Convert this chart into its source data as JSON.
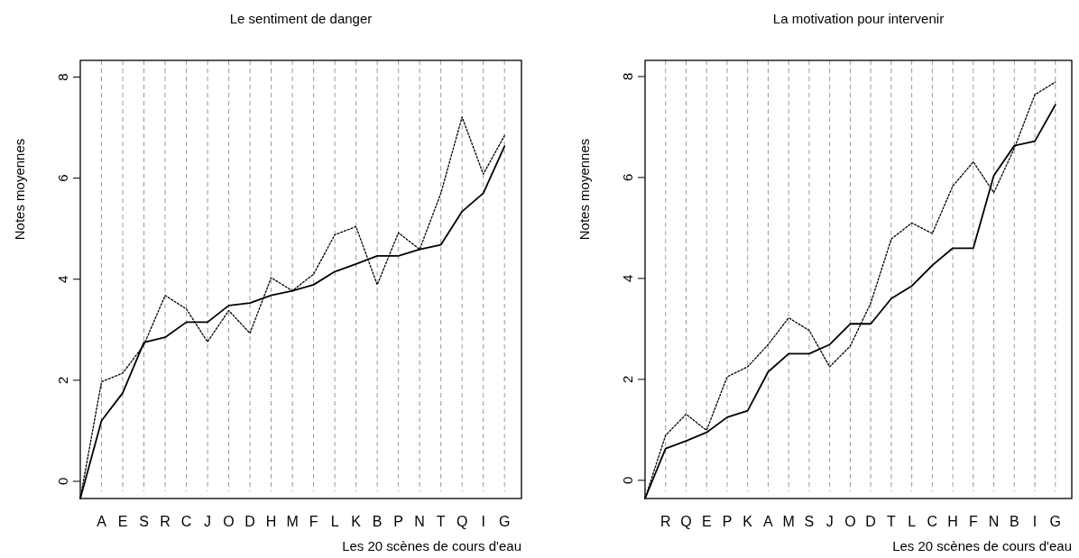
{
  "chart_data": [
    {
      "type": "line",
      "title": "Le sentiment de danger",
      "xlabel": "Les 20 scènes de cours d'eau",
      "ylabel": "Notes moyennes",
      "categories": [
        null,
        "A",
        "E",
        "S",
        "R",
        "C",
        "J",
        "O",
        "D",
        "H",
        "M",
        "F",
        "L",
        "K",
        "B",
        "P",
        "N",
        "T",
        "Q",
        "I",
        "G"
      ],
      "series": [
        {
          "color": "#000000",
          "line_style": "solid",
          "values": [
            -0.34,
            1.2,
            1.75,
            2.75,
            2.85,
            3.15,
            3.15,
            3.48,
            3.53,
            3.68,
            3.77,
            3.89,
            4.15,
            4.3,
            4.46,
            4.46,
            4.59,
            4.68,
            5.34,
            5.7,
            6.63
          ]
        },
        {
          "color": "#000000",
          "line_style": "dotted",
          "values": [
            -0.34,
            1.97,
            2.14,
            2.7,
            3.68,
            3.41,
            2.76,
            3.38,
            2.93,
            4.03,
            3.77,
            4.1,
            4.88,
            5.04,
            3.89,
            4.92,
            4.59,
            5.7,
            7.21,
            6.08,
            6.84
          ]
        }
      ],
      "ylim": [
        -0.34,
        8.33
      ],
      "yticks": [
        0,
        2,
        4,
        6,
        8
      ],
      "grid": "x"
    },
    {
      "type": "line",
      "title": "La motivation pour intervenir",
      "xlabel": "Les 20 scènes de cours d'eau",
      "ylabel": "Notes moyennes",
      "categories": [
        null,
        "R",
        "Q",
        "E",
        "P",
        "K",
        "A",
        "M",
        "S",
        "J",
        "O",
        "D",
        "T",
        "L",
        "C",
        "H",
        "F",
        "N",
        "B",
        "I",
        "G"
      ],
      "series": [
        {
          "color": "#000000",
          "line_style": "solid",
          "values": [
            -0.36,
            0.63,
            0.78,
            0.95,
            1.25,
            1.38,
            2.15,
            2.51,
            2.51,
            2.69,
            3.1,
            3.1,
            3.6,
            3.85,
            4.26,
            4.6,
            4.6,
            6.04,
            6.63,
            6.72,
            7.44
          ]
        },
        {
          "color": "#000000",
          "line_style": "dotted",
          "values": [
            -0.36,
            0.89,
            1.31,
            0.99,
            2.05,
            2.25,
            2.69,
            3.22,
            2.97,
            2.25,
            2.66,
            3.51,
            4.78,
            5.1,
            4.89,
            5.83,
            6.31,
            5.7,
            6.58,
            7.64,
            7.89
          ]
        }
      ],
      "ylim": [
        -0.36,
        8.32
      ],
      "yticks": [
        0,
        2,
        4,
        6,
        8
      ],
      "grid": "x"
    }
  ]
}
